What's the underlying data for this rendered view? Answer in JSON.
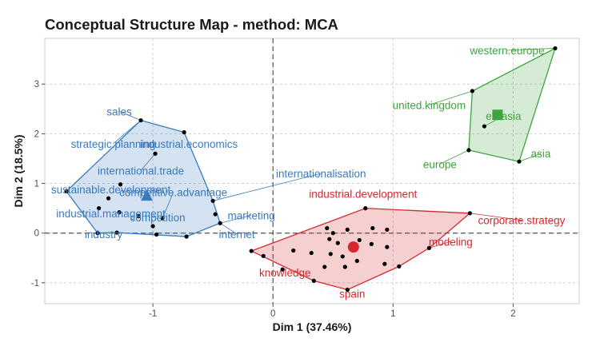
{
  "chart_data": {
    "type": "scatter",
    "title": "Conceptual Structure Map - method: MCA",
    "xlabel": "Dim 1 (37.46%)",
    "ylabel": "Dim 2 (18.5%)",
    "xlim": [
      -1.9,
      2.55
    ],
    "ylim": [
      -1.42,
      3.92
    ],
    "x_ticks": [
      -1,
      0,
      1,
      2
    ],
    "y_ticks": [
      -1,
      0,
      1,
      2,
      3
    ],
    "grid": true,
    "clusters": [
      {
        "color": "#3a7bbf",
        "centroid": [
          -1.05,
          0.75
        ],
        "centroid_marker": "triangle",
        "hull": [
          [
            -1.72,
            0.84
          ],
          [
            -1.1,
            2.27
          ],
          [
            -0.74,
            2.03
          ],
          [
            -0.5,
            0.65
          ],
          [
            -0.44,
            0.2
          ],
          [
            -0.72,
            -0.07
          ],
          [
            -1.3,
            0.01
          ],
          [
            -1.46,
            0.0
          ]
        ],
        "points": [
          [
            -1.72,
            0.84
          ],
          [
            -1.1,
            2.27
          ],
          [
            -0.74,
            2.03
          ],
          [
            -0.98,
            1.6
          ],
          [
            -1.27,
            0.98
          ],
          [
            -1.37,
            0.7
          ],
          [
            -1.45,
            0.5
          ],
          [
            -1.28,
            0.42
          ],
          [
            -1.12,
            0.34
          ],
          [
            -0.92,
            0.3
          ],
          [
            -1.0,
            0.14
          ],
          [
            -0.5,
            0.65
          ],
          [
            -0.44,
            0.2
          ],
          [
            -0.72,
            -0.07
          ],
          [
            -0.97,
            -0.03
          ],
          [
            -1.3,
            0.01
          ],
          [
            -1.46,
            0.0
          ],
          [
            -0.48,
            0.38
          ]
        ],
        "labels": [
          {
            "text": "sales",
            "pos": [
              -1.28,
              2.45
            ]
          },
          {
            "text": "strategic.planning",
            "pos": [
              -1.33,
              1.8
            ]
          },
          {
            "text": "industrial.economics",
            "pos": [
              -0.7,
              1.8
            ]
          },
          {
            "text": "international.trade",
            "pos": [
              -1.1,
              1.26
            ]
          },
          {
            "text": "internationalisation",
            "pos": [
              0.4,
              1.2
            ]
          },
          {
            "text": "sustainable.development",
            "pos": [
              -1.35,
              0.88
            ]
          },
          {
            "text": "competitive.advantage",
            "pos": [
              -0.83,
              0.82
            ]
          },
          {
            "text": "industrial.management",
            "pos": [
              -1.35,
              0.4
            ]
          },
          {
            "text": "competition",
            "pos": [
              -0.96,
              0.32
            ]
          },
          {
            "text": "marketing",
            "pos": [
              -0.18,
              0.36
            ]
          },
          {
            "text": "industry",
            "pos": [
              -1.41,
              -0.02
            ]
          },
          {
            "text": "internet",
            "pos": [
              -0.3,
              -0.02
            ]
          }
        ]
      },
      {
        "color": "#d7282e",
        "centroid": [
          0.67,
          -0.28
        ],
        "centroid_marker": "circle",
        "hull": [
          [
            -0.18,
            -0.36
          ],
          [
            0.77,
            0.5
          ],
          [
            1.64,
            0.4
          ],
          [
            1.3,
            -0.3
          ],
          [
            1.05,
            -0.67
          ],
          [
            0.62,
            -1.14
          ],
          [
            0.34,
            -0.96
          ]
        ],
        "points": [
          [
            -0.18,
            -0.36
          ],
          [
            0.77,
            0.5
          ],
          [
            1.64,
            0.4
          ],
          [
            1.3,
            -0.3
          ],
          [
            1.05,
            -0.67
          ],
          [
            0.62,
            -1.14
          ],
          [
            0.34,
            -0.96
          ],
          [
            0.45,
            0.1
          ],
          [
            0.5,
            0.0
          ],
          [
            0.62,
            0.07
          ],
          [
            0.83,
            0.1
          ],
          [
            0.95,
            0.07
          ],
          [
            0.47,
            -0.12
          ],
          [
            0.54,
            -0.2
          ],
          [
            0.72,
            -0.14
          ],
          [
            0.82,
            -0.22
          ],
          [
            0.95,
            -0.28
          ],
          [
            0.48,
            -0.42
          ],
          [
            0.58,
            -0.47
          ],
          [
            0.7,
            -0.56
          ],
          [
            0.93,
            -0.62
          ],
          [
            0.43,
            -0.68
          ],
          [
            0.32,
            -0.4
          ],
          [
            0.17,
            -0.35
          ],
          [
            0.08,
            -0.73
          ],
          [
            -0.08,
            -0.46
          ],
          [
            0.6,
            -0.68
          ]
        ],
        "labels": [
          {
            "text": "industrial.development",
            "pos": [
              0.75,
              0.79
            ]
          },
          {
            "text": "corporate.strategy",
            "pos": [
              2.07,
              0.26
            ]
          },
          {
            "text": "modeling",
            "pos": [
              1.48,
              -0.17
            ]
          },
          {
            "text": "knowledge",
            "pos": [
              0.1,
              -0.79
            ]
          },
          {
            "text": "spain",
            "pos": [
              0.66,
              -1.22
            ]
          }
        ]
      },
      {
        "color": "#3ea53e",
        "centroid": [
          1.87,
          2.38
        ],
        "centroid_marker": "square",
        "hull": [
          [
            1.63,
            1.67
          ],
          [
            1.66,
            2.86
          ],
          [
            2.35,
            3.72
          ],
          [
            2.05,
            1.44
          ]
        ],
        "points": [
          [
            1.63,
            1.67
          ],
          [
            1.66,
            2.86
          ],
          [
            2.35,
            3.72
          ],
          [
            2.05,
            1.44
          ],
          [
            1.76,
            2.15
          ]
        ],
        "labels": [
          {
            "text": "western.europe",
            "pos": [
              1.95,
              3.68
            ]
          },
          {
            "text": "united.kingdom",
            "pos": [
              1.3,
              2.58
            ]
          },
          {
            "text": "eurasia",
            "pos": [
              1.92,
              2.36
            ]
          },
          {
            "text": "asia",
            "pos": [
              2.23,
              1.6
            ]
          },
          {
            "text": "europe",
            "pos": [
              1.39,
              1.39
            ]
          }
        ]
      }
    ]
  }
}
